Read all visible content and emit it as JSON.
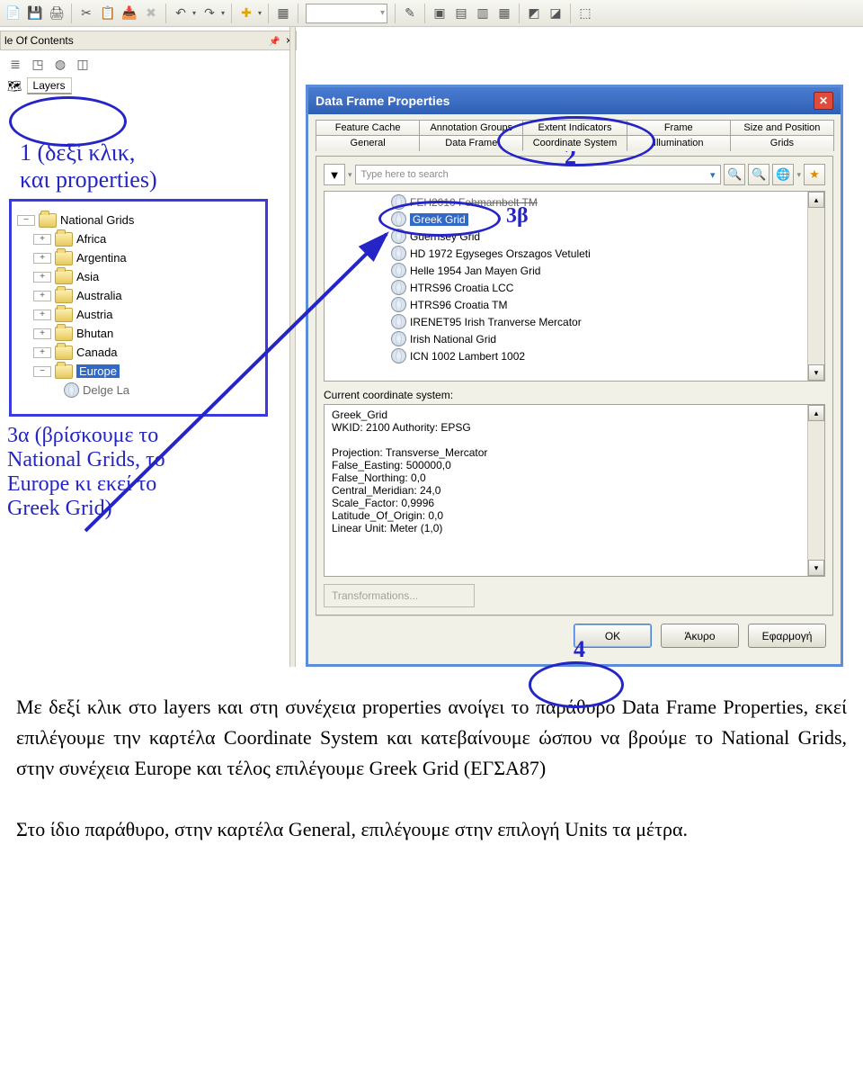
{
  "toolbar": {
    "icons": [
      "new",
      "save",
      "print",
      "cut",
      "copy",
      "paste",
      "delete",
      "undo",
      "redo",
      "add",
      "panel",
      "pointer",
      "pan",
      "rect",
      "zoom",
      "tool-a",
      "tool-b",
      "tool-c",
      "tool-d"
    ]
  },
  "toc": {
    "header": "le Of Contents",
    "pin": "📌",
    "close": "×",
    "layers": "Layers"
  },
  "annot1": "1 (δεξί κλικ,\nκαι properties)",
  "annot3a": "3α (βρίσκουμε το\nNational Grids, το\nEurope κι εκεί το\nGreek Grid)",
  "annot3b": "3β",
  "annot2": "2",
  "annot4": "4",
  "tree": {
    "root": "National Grids",
    "items": [
      "Africa",
      "Argentina",
      "Asia",
      "Australia",
      "Austria",
      "Bhutan",
      "Canada",
      "Europe"
    ],
    "partial": "Delge La"
  },
  "dialog": {
    "title": "Data Frame Properties",
    "tabs_top": [
      "Feature Cache",
      "Annotation Groups",
      "Extent Indicators",
      "Frame",
      "Size and Position"
    ],
    "tabs_bot": [
      "General",
      "Data Frame",
      "Coordinate System",
      "Illumination",
      "Grids"
    ],
    "active_tab": "Coordinate System",
    "search_placeholder": "Type here to search",
    "coord_list": [
      "FEH2010 Fehmarnbelt TM",
      "Greek Grid",
      "Guernsey Grid",
      "HD 1972 Egyseges Orszagos Vetuleti",
      "Helle 1954 Jan Mayen Grid",
      "HTRS96 Croatia LCC",
      "HTRS96 Croatia TM",
      "IRENET95 Irish Tranverse Mercator",
      "Irish National Grid",
      "ICN 1002 Lambert 1002"
    ],
    "current_label": "Current coordinate system:",
    "details": "Greek_Grid\nWKID: 2100 Authority: EPSG\n\nProjection: Transverse_Mercator\nFalse_Easting: 500000,0\nFalse_Northing: 0,0\nCentral_Meridian: 24,0\nScale_Factor: 0,9996\nLatitude_Of_Origin: 0,0\nLinear Unit: Meter (1,0)",
    "transform_btn": "Transformations...",
    "ok": "OK",
    "cancel": "Άκυρο",
    "apply": "Εφαρμογή"
  },
  "body_text": "Με δεξί κλικ στο layers  και στη συνέχεια properties ανοίγει το παράθυρο Data Frame Properties, εκεί επιλέγουμε την καρτέλα Coordinate System και κατεβαίνουμε ώσπου να βρούμε το National Grids, στην συνέχεια Europe και τέλος επιλέγουμε Greek Grid (ΕΓΣΑ87)\n\nΣτο ίδιο παράθυρο, στην καρτέλα General, επιλέγουμε  στην επιλογή Units τα μέτρα."
}
